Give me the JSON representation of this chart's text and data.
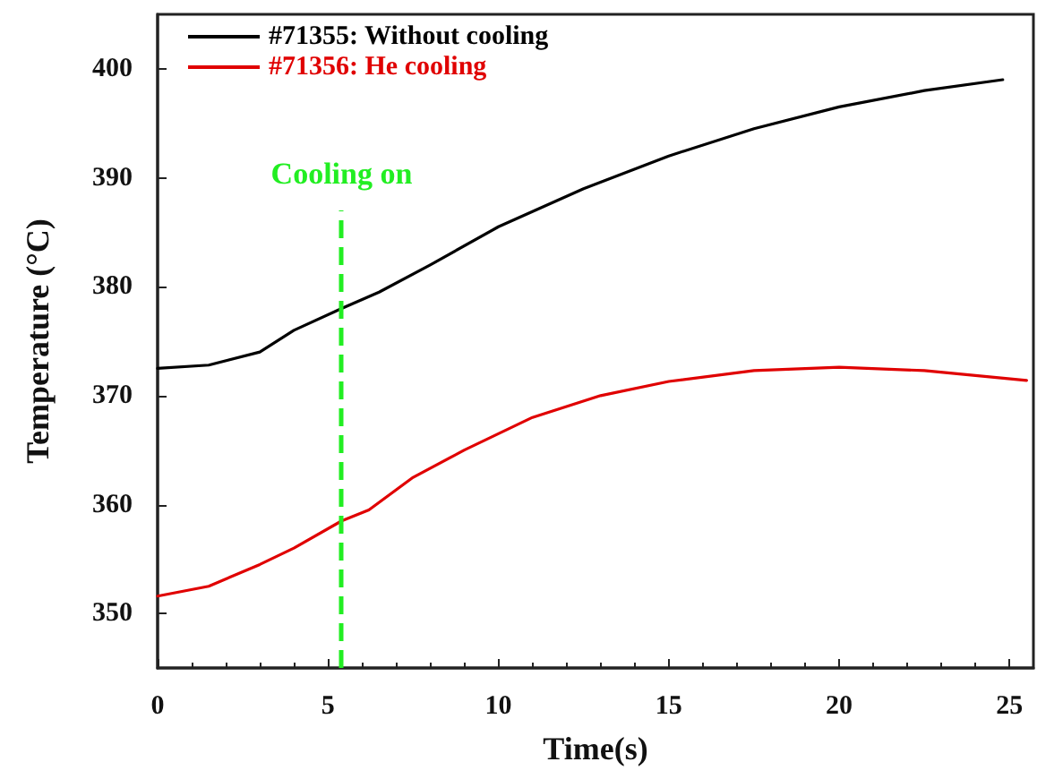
{
  "chart_data": {
    "type": "line",
    "xlabel": "Time(s)",
    "ylabel": "Temperature (°C)",
    "xlim": [
      0,
      25.7
    ],
    "xticks": [
      0,
      5,
      10,
      15,
      20,
      25
    ],
    "ylim": [
      345,
      405
    ],
    "yticks": [
      350,
      360,
      370,
      380,
      390,
      400
    ],
    "grid": false,
    "legend": "top left",
    "marker": "none",
    "line_style": "solid",
    "series": [
      {
        "name": "#71355: Without cooling",
        "color": "#000000",
        "x": [
          0,
          1.5,
          3,
          4,
          5.4,
          6.5,
          8,
          10,
          12.5,
          15,
          17.5,
          20,
          22.5,
          24.8
        ],
        "values": [
          372.5,
          372.8,
          374,
          376,
          378,
          379.5,
          382,
          385.5,
          389,
          392,
          394.5,
          396.5,
          398,
          399
        ]
      },
      {
        "name": "#71356: He cooling",
        "color": "#e00000",
        "x": [
          0,
          1.5,
          3,
          4,
          5.4,
          6.2,
          7.5,
          9,
          11,
          13,
          15,
          17.5,
          20,
          22.5,
          25.5
        ],
        "values": [
          351.6,
          352.5,
          354.5,
          356,
          358.5,
          359.5,
          362.5,
          365,
          368,
          370,
          371.3,
          372.3,
          372.6,
          372.3,
          371.4
        ]
      }
    ],
    "ref_lines": [
      {
        "axis": "x",
        "value": 5.4,
        "label": "Cooling on",
        "color": "#22ee22",
        "line_style": "dashed"
      }
    ]
  }
}
